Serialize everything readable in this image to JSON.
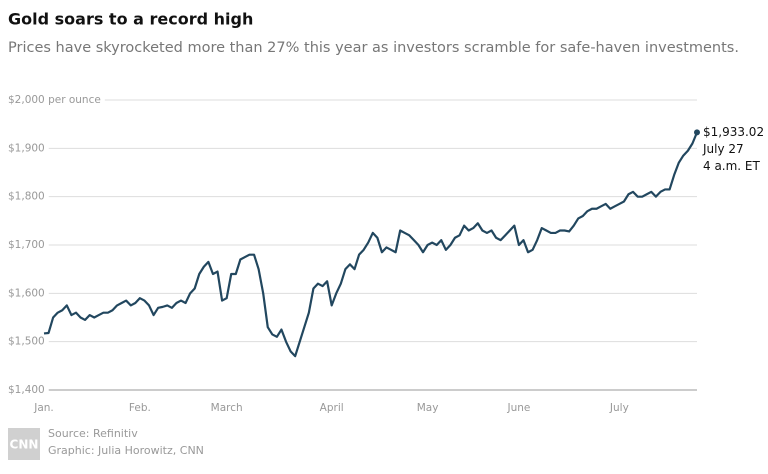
{
  "chart_data": {
    "type": "line",
    "title": "Gold soars to a record high",
    "subtitle": "Prices have skyrocketed more than 27% this year as investors scramble for safe-haven investments.",
    "categories": [
      "Jan.",
      null,
      null,
      null,
      null,
      null,
      null,
      null,
      null,
      null,
      null,
      null,
      null,
      null,
      null,
      null,
      null,
      null,
      null,
      null,
      null,
      "Feb.",
      null,
      null,
      null,
      null,
      null,
      null,
      null,
      null,
      null,
      null,
      null,
      null,
      null,
      null,
      null,
      null,
      null,
      null,
      "March",
      null,
      null,
      null,
      null,
      null,
      null,
      null,
      null,
      null,
      null,
      null,
      null,
      null,
      null,
      null,
      null,
      null,
      null,
      null,
      null,
      null,
      null,
      "April",
      null,
      null,
      null,
      null,
      null,
      null,
      null,
      null,
      null,
      null,
      null,
      null,
      null,
      null,
      null,
      null,
      null,
      null,
      null,
      null,
      "May",
      null,
      null,
      null,
      null,
      null,
      null,
      null,
      null,
      null,
      null,
      null,
      null,
      null,
      null,
      null,
      null,
      null,
      null,
      null,
      "June",
      null,
      null,
      null,
      null,
      null,
      null,
      null,
      null,
      null,
      null,
      null,
      null,
      null,
      null,
      null,
      null,
      null,
      null,
      null,
      null,
      null,
      "July",
      null,
      null,
      null,
      null,
      null,
      null,
      null,
      null,
      null,
      null,
      null,
      null,
      null,
      null,
      null,
      null,
      null
    ],
    "series": [
      {
        "name": "Gold",
        "color": "#22475f",
        "values": [
          1517,
          1518,
          1550,
          1560,
          1565,
          1575,
          1555,
          1560,
          1550,
          1545,
          1555,
          1550,
          1555,
          1560,
          1560,
          1565,
          1575,
          1580,
          1585,
          1575,
          1580,
          1590,
          1585,
          1575,
          1555,
          1570,
          1572,
          1575,
          1570,
          1580,
          1585,
          1580,
          1600,
          1610,
          1640,
          1655,
          1665,
          1640,
          1645,
          1585,
          1590,
          1640,
          1640,
          1670,
          1675,
          1680,
          1680,
          1650,
          1600,
          1530,
          1515,
          1510,
          1525,
          1500,
          1480,
          1470,
          1500,
          1530,
          1560,
          1610,
          1620,
          1615,
          1625,
          1575,
          1600,
          1620,
          1650,
          1660,
          1650,
          1680,
          1690,
          1705,
          1725,
          1715,
          1685,
          1695,
          1690,
          1685,
          1730,
          1725,
          1720,
          1710,
          1700,
          1685,
          1700,
          1705,
          1700,
          1710,
          1690,
          1700,
          1715,
          1720,
          1740,
          1730,
          1735,
          1745,
          1730,
          1725,
          1730,
          1715,
          1710,
          1720,
          1730,
          1740,
          1700,
          1710,
          1685,
          1690,
          1710,
          1735,
          1730,
          1725,
          1725,
          1730,
          1730,
          1728,
          1740,
          1755,
          1760,
          1770,
          1775,
          1775,
          1780,
          1785,
          1775,
          1780,
          1785,
          1790,
          1805,
          1810,
          1800,
          1800,
          1805,
          1810,
          1800,
          1810,
          1815,
          1815,
          1845,
          1870,
          1885,
          1895,
          1910,
          1933.02
        ],
        "value_labels": [
          null,
          null,
          null,
          null,
          null,
          null,
          null,
          null,
          null,
          null,
          null,
          null,
          null,
          null,
          null,
          null,
          null,
          null,
          null,
          null,
          null,
          null,
          null,
          null,
          null,
          null,
          null,
          null,
          null,
          null,
          null,
          null,
          null,
          null,
          null,
          null,
          null,
          null,
          null,
          null,
          null,
          null,
          null,
          null,
          null,
          null,
          null,
          null,
          null,
          null,
          null,
          null,
          null,
          null,
          null,
          null,
          null,
          null,
          null,
          null,
          null,
          null,
          null,
          null,
          null,
          null,
          null,
          null,
          null,
          null,
          null,
          null,
          null,
          null,
          null,
          null,
          null,
          null,
          null,
          null,
          null,
          null,
          null,
          null,
          null,
          null,
          null,
          null,
          null,
          null,
          null,
          null,
          null,
          null,
          null,
          null,
          null,
          null,
          null,
          null,
          null,
          null,
          null,
          null,
          null,
          null,
          null,
          null,
          null,
          null,
          null,
          null,
          null,
          null,
          null,
          null,
          null,
          null,
          null,
          null,
          null,
          null,
          null,
          null,
          null,
          null,
          null,
          null,
          null,
          null,
          null,
          null,
          null,
          null,
          null,
          null,
          null,
          null,
          null,
          null,
          null,
          null,
          null,
          "$1,933.02"
        ]
      }
    ],
    "annotation": [
      "July 27",
      "4 a.m. ET"
    ],
    "ylim": [
      1400,
      2000
    ],
    "yticks": [
      {
        "value": 1400,
        "label": "$1,400"
      },
      {
        "value": 1500,
        "label": "$1,500"
      },
      {
        "value": 1600,
        "label": "$1,600"
      },
      {
        "value": 1700,
        "label": "$1,700"
      },
      {
        "value": 1800,
        "label": "$1,800"
      },
      {
        "value": 1900,
        "label": "$1,900"
      },
      {
        "value": 2000,
        "label": "$2,000 per ounce"
      }
    ],
    "grid": true,
    "source": "Source: Refinitiv",
    "credit": "Graphic: Julia Horowitz, CNN",
    "logo": "CNN"
  }
}
